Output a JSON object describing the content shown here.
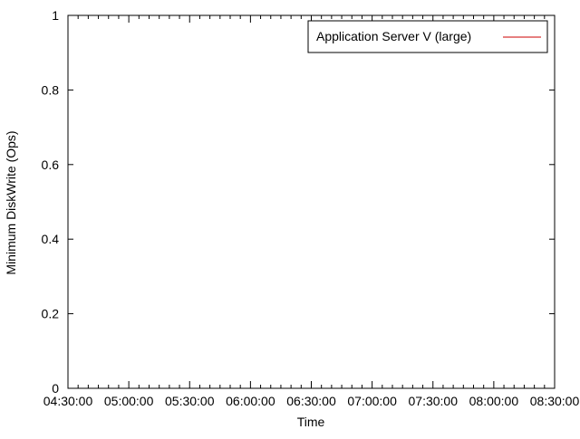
{
  "chart_data": {
    "type": "line",
    "title": "",
    "xlabel": "Time",
    "ylabel": "Minimum DiskWrite (Ops)",
    "x_tick_labels": [
      "04:30:00",
      "05:00:00",
      "05:30:00",
      "06:00:00",
      "06:30:00",
      "07:00:00",
      "07:30:00",
      "08:00:00",
      "08:30:00"
    ],
    "y_tick_labels": [
      "0",
      "0.2",
      "0.4",
      "0.6",
      "0.8",
      "1"
    ],
    "y_ticks": [
      0,
      0.2,
      0.4,
      0.6,
      0.8,
      1
    ],
    "ylim": [
      0,
      1
    ],
    "xlim": [
      "04:30:00",
      "08:30:00"
    ],
    "grid": false,
    "legend_position": "top-right",
    "series": [
      {
        "name": "Application Server V (large)",
        "color": "#cc0000",
        "x": [],
        "values": []
      }
    ]
  }
}
